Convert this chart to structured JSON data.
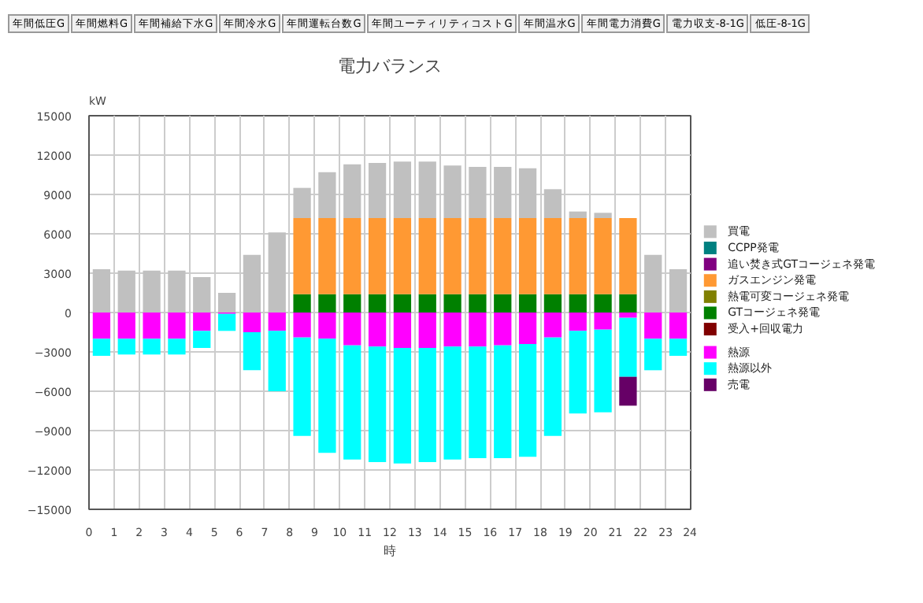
{
  "chart_data": {
    "type": "bar",
    "stacked": true,
    "title": "電力バランス",
    "xlabel": "時",
    "ylabel": "kW",
    "annotations": [
      "年間低圧G",
      "年間燃料G",
      "年間補給下水G",
      "年間冷水G",
      "年間運転台数G",
      "年間ユーティリティコストG",
      "年間温水G",
      "年間電力消費G",
      "電力収支-8-1G",
      "低圧-8-1G"
    ],
    "x": [
      0.5,
      1.5,
      2.5,
      3.5,
      4.5,
      5.5,
      6.5,
      7.5,
      8.5,
      9.5,
      10.5,
      11.5,
      12.5,
      13.5,
      14.5,
      15.5,
      16.5,
      17.5,
      18.5,
      19.5,
      20.5,
      21.5,
      22.5,
      23.5
    ],
    "xlim": [
      0,
      24
    ],
    "xticks": [
      0,
      1,
      2,
      3,
      4,
      5,
      6,
      7,
      8,
      9,
      10,
      11,
      12,
      13,
      14,
      15,
      16,
      17,
      18,
      19,
      20,
      21,
      22,
      23,
      24
    ],
    "ylim": [
      -15000,
      15000
    ],
    "yticks": [
      -15000,
      -12000,
      -9000,
      -6000,
      -3000,
      0,
      3000,
      6000,
      9000,
      12000,
      15000
    ],
    "grid": true,
    "legend": "right",
    "series": [
      {
        "name": "受入+回収電力",
        "color": "#800000",
        "values": [
          null,
          null,
          null,
          null,
          null,
          null,
          null,
          null,
          null,
          null,
          null,
          null,
          null,
          null,
          null,
          null,
          null,
          null,
          null,
          null,
          null,
          null,
          null,
          null
        ]
      },
      {
        "name": "GTコージェネ発電",
        "color": "#008000",
        "values": [
          null,
          null,
          null,
          null,
          null,
          null,
          null,
          null,
          1400,
          1400,
          1400,
          1400,
          1400,
          1400,
          1400,
          1400,
          1400,
          1400,
          1400,
          1400,
          1400,
          1400,
          null,
          null
        ]
      },
      {
        "name": "熱電可変コージェネ発電",
        "color": "#808000",
        "values": [
          null,
          null,
          null,
          null,
          null,
          null,
          null,
          null,
          null,
          null,
          null,
          null,
          null,
          null,
          null,
          null,
          null,
          null,
          null,
          null,
          null,
          null,
          null,
          null
        ]
      },
      {
        "name": "ガスエンジン発電",
        "color": "#ff9933",
        "values": [
          null,
          null,
          null,
          null,
          null,
          null,
          null,
          null,
          5800,
          5800,
          5800,
          5800,
          5800,
          5800,
          5800,
          5800,
          5800,
          5800,
          5800,
          5800,
          5800,
          5800,
          null,
          null
        ]
      },
      {
        "name": "追い焚き式GTコージェネ発電",
        "color": "#800080",
        "values": [
          null,
          null,
          null,
          null,
          null,
          null,
          null,
          null,
          null,
          null,
          null,
          null,
          null,
          null,
          null,
          null,
          null,
          null,
          null,
          null,
          null,
          null,
          null,
          null
        ]
      },
      {
        "name": "CCPP発電",
        "color": "#008080",
        "values": [
          null,
          null,
          null,
          null,
          null,
          null,
          null,
          null,
          null,
          null,
          null,
          null,
          null,
          null,
          null,
          null,
          null,
          null,
          null,
          null,
          null,
          null,
          null,
          null
        ]
      },
      {
        "name": "買電",
        "color": "#c0c0c0",
        "values": [
          3300,
          3200,
          3200,
          3200,
          2700,
          1500,
          4400,
          6100,
          2300,
          3500,
          4100,
          4200,
          4300,
          4300,
          4000,
          3900,
          3900,
          3800,
          2200,
          500,
          400,
          null,
          4400,
          3300
        ]
      },
      {
        "name": "熱源",
        "color": "#ff00ff",
        "values": [
          -2000,
          -2000,
          -2000,
          -2000,
          -1400,
          -100,
          -1500,
          -1400,
          -1900,
          -2000,
          -2500,
          -2600,
          -2700,
          -2700,
          -2600,
          -2600,
          -2500,
          -2400,
          -1900,
          -1400,
          -1300,
          -400,
          -2000,
          -2000
        ]
      },
      {
        "name": "熱源以外",
        "color": "#00ffff",
        "values": [
          -1300,
          -1200,
          -1200,
          -1200,
          -1300,
          -1300,
          -2900,
          -4600,
          -7500,
          -8700,
          -8700,
          -8800,
          -8800,
          -8700,
          -8600,
          -8500,
          -8600,
          -8600,
          -7500,
          -6300,
          -6300,
          -4500,
          -2400,
          -1300
        ]
      },
      {
        "name": "売電",
        "color": "#660066",
        "values": [
          null,
          null,
          null,
          null,
          null,
          null,
          null,
          null,
          null,
          null,
          null,
          null,
          null,
          null,
          null,
          null,
          null,
          null,
          null,
          null,
          null,
          -2200,
          null,
          null
        ]
      }
    ]
  }
}
